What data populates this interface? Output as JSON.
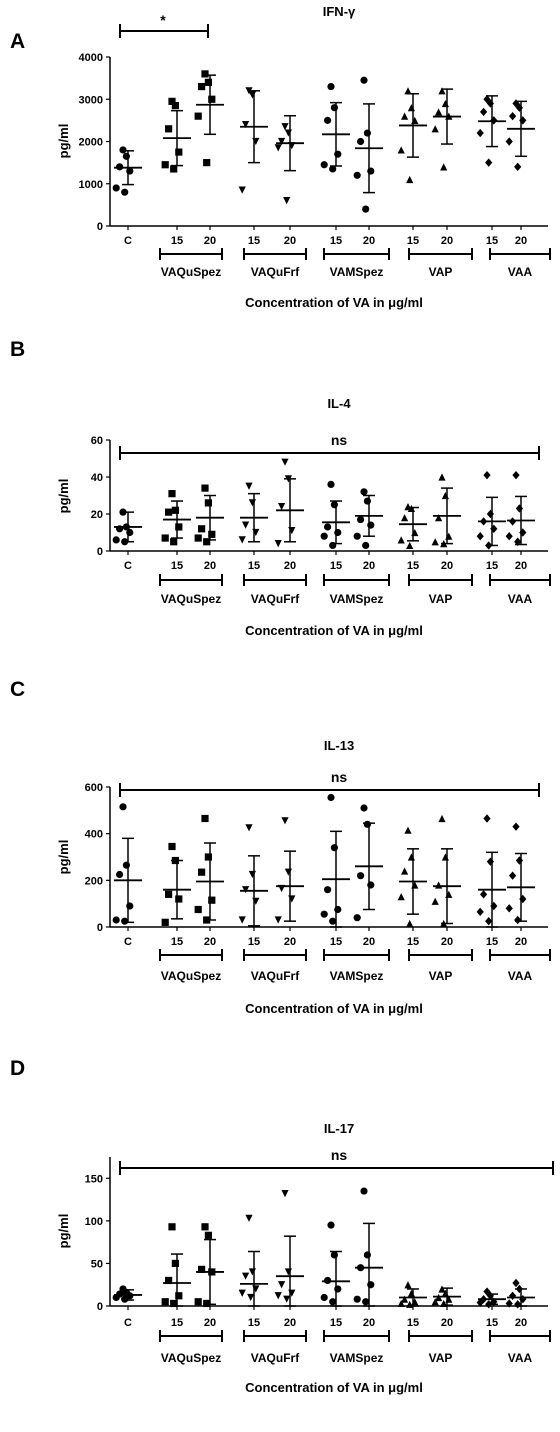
{
  "xaxis_title": "Concentration of VA in μg/ml",
  "categories": [
    "C",
    "15",
    "20",
    "15",
    "20",
    "15",
    "20",
    "15",
    "20",
    "15",
    "20"
  ],
  "groups": [
    "VAQuSpez",
    "VAQuFrf",
    "VAMSpez",
    "VAP",
    "VAA"
  ],
  "marker_shapes": [
    "circle",
    "square",
    "square",
    "triangle-down",
    "triangle-down",
    "circle",
    "circle",
    "triangle-up",
    "triangle-up",
    "diamond",
    "diamond"
  ],
  "chart_data": [
    {
      "panel": "A",
      "type": "scatter",
      "title": "IFN-γ",
      "ylabel": "pg/ml",
      "ylim": [
        0,
        4000
      ],
      "yticks": [
        "0",
        "1000",
        "2000",
        "3000",
        "4000"
      ],
      "significance": {
        "label": "*",
        "from": "C",
        "to": "20 (VAQuSpez)"
      },
      "means": [
        1380,
        2080,
        2870,
        2350,
        1960,
        2170,
        1840,
        2380,
        2590,
        2480,
        2300
      ],
      "sd": [
        400,
        650,
        700,
        850,
        650,
        750,
        1050,
        750,
        650,
        600,
        650
      ],
      "points": [
        [
          1800,
          1650,
          1400,
          1300,
          900,
          800
        ],
        [
          2950,
          2850,
          2300,
          1750,
          1450,
          1350
        ],
        [
          3600,
          3400,
          3300,
          3000,
          2600,
          1500
        ],
        [
          3200,
          3100,
          2400,
          2000,
          850
        ],
        [
          2350,
          2200,
          2000,
          1900,
          1850,
          600
        ],
        [
          3300,
          2800,
          2500,
          1700,
          1450,
          1350
        ],
        [
          3450,
          2200,
          2000,
          1300,
          1200,
          400
        ],
        [
          3200,
          2800,
          2600,
          2500,
          1800,
          1100
        ],
        [
          3200,
          2900,
          2700,
          2600,
          2300,
          1400
        ],
        [
          3000,
          2900,
          2700,
          2500,
          2200,
          1500
        ],
        [
          2900,
          2800,
          2600,
          2500,
          2000,
          1400
        ]
      ]
    },
    {
      "panel": "B",
      "type": "scatter",
      "title": "IL-4",
      "ylabel": "pg/ml",
      "ylim": [
        0,
        60
      ],
      "yticks": [
        "0",
        "20",
        "40",
        "60"
      ],
      "significance": {
        "label": "ns",
        "from": "C",
        "to": "20 (VAA)"
      },
      "means": [
        13,
        17,
        18,
        18,
        22,
        15.5,
        19,
        14.5,
        19,
        16,
        16.5
      ],
      "sd": [
        8,
        10,
        12,
        13,
        17,
        11.5,
        11,
        9,
        15,
        13,
        13
      ],
      "points": [
        [
          21,
          13,
          12,
          10,
          6,
          5
        ],
        [
          31,
          22,
          21,
          13,
          7,
          5
        ],
        [
          34,
          26,
          12,
          9,
          7,
          5
        ],
        [
          35,
          26,
          14,
          10,
          6
        ],
        [
          48,
          39,
          24,
          11,
          4
        ],
        [
          36,
          25,
          13,
          10,
          8,
          3
        ],
        [
          32,
          27,
          17,
          14,
          8,
          3
        ],
        [
          24,
          23,
          18,
          10,
          6,
          3
        ],
        [
          40,
          30,
          18,
          8,
          5,
          4
        ],
        [
          41,
          20,
          16,
          12,
          8,
          3
        ],
        [
          41,
          23,
          16,
          10,
          8,
          5
        ]
      ]
    },
    {
      "panel": "C",
      "type": "scatter",
      "title": "IL-13",
      "ylabel": "pg/ml",
      "ylim": [
        0,
        600
      ],
      "yticks": [
        "0",
        "200",
        "400",
        "600"
      ],
      "significance": {
        "label": "ns",
        "from": "C",
        "to": "20 (VAA)"
      },
      "means": [
        200,
        160,
        195,
        155,
        175,
        205,
        260,
        195,
        175,
        160,
        170
      ],
      "sd": [
        180,
        125,
        165,
        150,
        150,
        205,
        185,
        140,
        160,
        160,
        145
      ],
      "points": [
        [
          515,
          265,
          225,
          90,
          30,
          25
        ],
        [
          345,
          285,
          140,
          120,
          20
        ],
        [
          465,
          300,
          235,
          115,
          75,
          30
        ],
        [
          425,
          225,
          160,
          110,
          30
        ],
        [
          455,
          235,
          165,
          120,
          30
        ],
        [
          555,
          340,
          160,
          75,
          55,
          25
        ],
        [
          510,
          440,
          220,
          180,
          40
        ],
        [
          415,
          300,
          240,
          180,
          130,
          15
        ],
        [
          465,
          300,
          180,
          140,
          110,
          15
        ],
        [
          465,
          280,
          140,
          90,
          65,
          25
        ],
        [
          430,
          285,
          220,
          120,
          80,
          30
        ]
      ]
    },
    {
      "panel": "D",
      "type": "scatter",
      "title": "IL-17",
      "ylabel": "pg/ml",
      "ylim": [
        0,
        175
      ],
      "yticks": [
        "0",
        "50",
        "100",
        "150"
      ],
      "significance": {
        "label": "ns",
        "from": "C",
        "to": "20 (VAA)"
      },
      "means": [
        13,
        27,
        40,
        26,
        35,
        29,
        45,
        10,
        11,
        8,
        10
      ],
      "sd": [
        6,
        34,
        38,
        38,
        47,
        35,
        52,
        10,
        10,
        6,
        10
      ],
      "points": [
        [
          20,
          16,
          14,
          12,
          10,
          8
        ],
        [
          93,
          50,
          30,
          12,
          5,
          3
        ],
        [
          93,
          83,
          43,
          40,
          5,
          3
        ],
        [
          103,
          40,
          35,
          20,
          15,
          10
        ],
        [
          132,
          40,
          25,
          15,
          12,
          8
        ],
        [
          95,
          60,
          30,
          20,
          10,
          5
        ],
        [
          135,
          60,
          45,
          25,
          8,
          5
        ],
        [
          25,
          15,
          8,
          5,
          3,
          2
        ],
        [
          20,
          15,
          10,
          8,
          5,
          3
        ],
        [
          17,
          12,
          8,
          5,
          4,
          2
        ],
        [
          27,
          20,
          12,
          8,
          3,
          2
        ]
      ]
    }
  ]
}
